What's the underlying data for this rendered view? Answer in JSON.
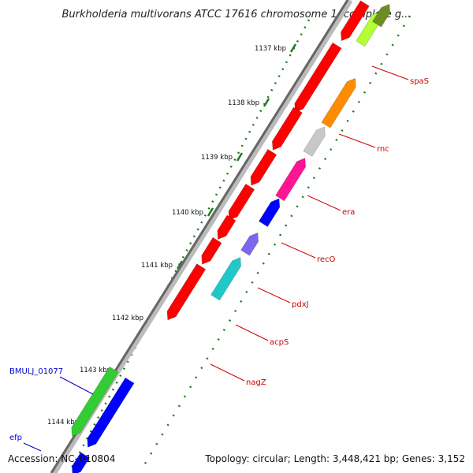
{
  "title": "Burkholderia multivorans ATCC 17616 chromosome 1, complete g...",
  "footer": {
    "accession": "Accession: NC_010804",
    "topology": "Topology: circular; Length: 3,448,421 bp; Genes: 3,152"
  },
  "colors": {
    "backbone_dark": "#666666",
    "backbone_light": "#bbbbbb",
    "tick_green": "#1e7a1e",
    "forward_gene": "#ff0000",
    "label_red": "#cc0000",
    "label_blue": "#0000cc"
  },
  "scale_labels": [
    "1137 kbp",
    "1138 kbp",
    "1139 kbp",
    "1140 kbp",
    "1141 kbp",
    "1142 kbp",
    "1143 kbp",
    "1144 kbp"
  ],
  "genes": [
    {
      "name": "",
      "strand": "+",
      "color": "#ff0000"
    },
    {
      "name": "",
      "strand": "+",
      "color": "#ff0000"
    },
    {
      "name": "",
      "strand": "+",
      "color": "#ff0000"
    },
    {
      "name": "",
      "strand": "+",
      "color": "#ff0000"
    },
    {
      "name": "",
      "strand": "+",
      "color": "#ff0000"
    },
    {
      "name": "",
      "strand": "+",
      "color": "#ff0000"
    },
    {
      "name": "",
      "strand": "+",
      "color": "#ff0000"
    },
    {
      "name": "",
      "strand": "+",
      "color": "#ff0000"
    },
    {
      "name": "spaS",
      "strand": "-",
      "color": "#b3ff33"
    },
    {
      "name": "",
      "strand": "-",
      "color": "#6b8e23"
    },
    {
      "name": "rnc",
      "strand": "-",
      "color": "#ff8c00"
    },
    {
      "name": "era",
      "strand": "-",
      "color": "#c8c8c8"
    },
    {
      "name": "recO",
      "strand": "-",
      "color": "#ff1493"
    },
    {
      "name": "pdxJ",
      "strand": "-",
      "color": "#0000ff"
    },
    {
      "name": "acpS",
      "strand": "-",
      "color": "#7b68ee"
    },
    {
      "name": "nagZ",
      "strand": "-",
      "color": "#20c8c8"
    },
    {
      "name": "BMULJ_01077",
      "strand": "+",
      "color": "#33cc33"
    },
    {
      "name": "",
      "strand": "+",
      "color": "#0000ff"
    },
    {
      "name": "efp",
      "strand": "+",
      "color": "#0000ff"
    }
  ]
}
